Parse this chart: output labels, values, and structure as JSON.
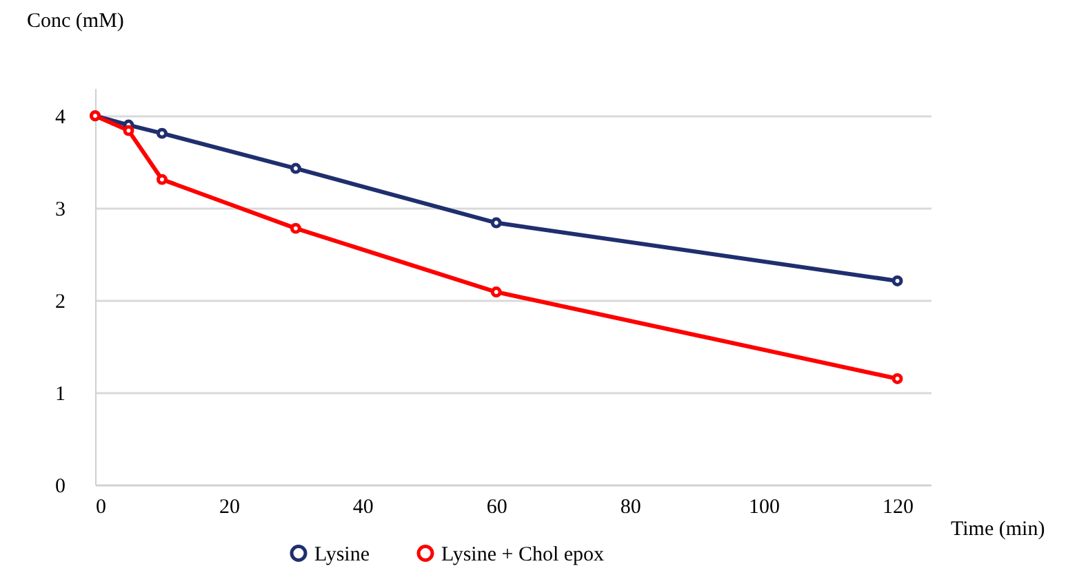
{
  "chart_data": {
    "type": "line",
    "xlabel": "Time (min)",
    "ylabel": "Conc (mM)",
    "x": [
      0,
      5,
      10,
      30,
      60,
      120
    ],
    "series": [
      {
        "name": "Lysine",
        "color": "#1f2f6e",
        "values": [
          4.0,
          3.9,
          3.81,
          3.43,
          2.84,
          2.21
        ]
      },
      {
        "name": "Lysine + Chol epox",
        "color": "#ff0000",
        "values": [
          4.0,
          3.84,
          3.31,
          2.78,
          2.09,
          1.15
        ]
      }
    ],
    "xlim": [
      0,
      125
    ],
    "xticks": [
      0,
      20,
      40,
      60,
      80,
      100,
      120
    ],
    "ylim": [
      0,
      4.3
    ],
    "yticks": [
      0,
      1,
      2,
      3,
      4
    ],
    "grid": "y",
    "legend": "bottom",
    "marker": "circle",
    "line_style": "solid"
  }
}
